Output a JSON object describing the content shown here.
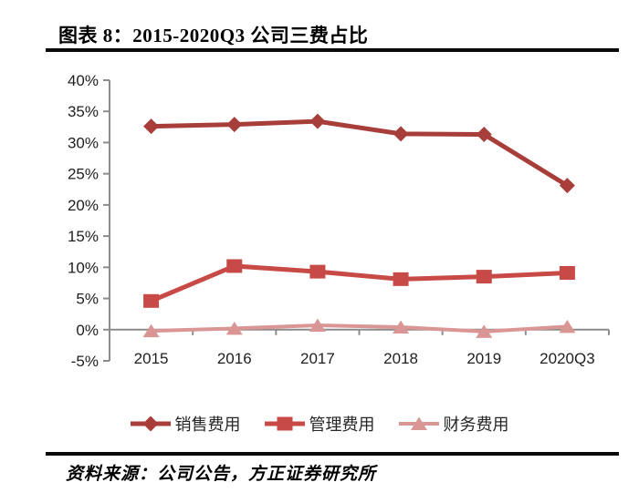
{
  "figure": {
    "title": "图表 8：2015-2020Q3 公司三费占比",
    "source": "资料来源：公司公告，方正证券研究所"
  },
  "chart_data": {
    "type": "line",
    "title": "2015-2020Q3 公司三费占比",
    "categories": [
      "2015",
      "2016",
      "2017",
      "2018",
      "2019",
      "2020Q3"
    ],
    "series": [
      {
        "id": "sales-expense",
        "name": "销售费用",
        "marker": "diamond",
        "color": "#A83E3A",
        "values": [
          32.6,
          32.9,
          33.4,
          31.4,
          31.3,
          23.1
        ]
      },
      {
        "id": "management-expense",
        "name": "管理费用",
        "marker": "square",
        "color": "#C84A47",
        "values": [
          4.6,
          10.2,
          9.3,
          8.1,
          8.5,
          9.1
        ]
      },
      {
        "id": "financial-expense",
        "name": "财务费用",
        "marker": "triangle",
        "color": "#D99694",
        "values": [
          -0.2,
          0.2,
          0.7,
          0.4,
          -0.3,
          0.5
        ]
      }
    ],
    "xlabel": "",
    "ylabel": "",
    "ylim": [
      -5,
      40
    ],
    "ytick_step": 5,
    "ytick_suffix": "%",
    "yticks": [
      "40%",
      "35%",
      "30%",
      "25%",
      "20%",
      "15%",
      "10%",
      "5%",
      "0%",
      "-5%"
    ],
    "grid": false,
    "legend_position": "bottom",
    "axis_color": "#8c8c8c",
    "label_color": "#1f1f1f"
  }
}
